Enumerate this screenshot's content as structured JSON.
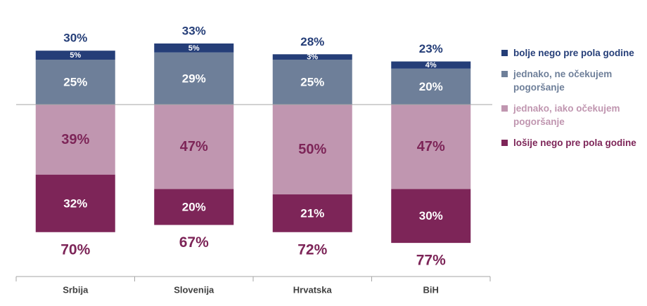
{
  "chart_data": {
    "type": "bar",
    "stacked": true,
    "categories": [
      "Srbija",
      "Slovenija",
      "Hrvatska",
      "BiH"
    ],
    "series": [
      {
        "name": "lošije nego pre pola godine",
        "values": [
          32,
          20,
          21,
          30
        ],
        "color": "#7d2558",
        "label_color": "#ffffff"
      },
      {
        "name": "jednako, iako očekujem pogoršanje",
        "values": [
          39,
          47,
          50,
          47
        ],
        "color": "#c096b0",
        "label_color": "#7d2558"
      },
      {
        "name": "jednako, ne očekujem pogoršanje",
        "values": [
          25,
          29,
          25,
          20
        ],
        "color": "#6e7f99",
        "label_color": "#ffffff"
      },
      {
        "name": "bolje nego pre pola godine",
        "values": [
          5,
          5,
          3,
          4
        ],
        "color": "#253e78",
        "label_color": "#ffffff"
      }
    ],
    "value_labels": [
      [
        "32%",
        "20%",
        "21%",
        "30%"
      ],
      [
        "39%",
        "47%",
        "50%",
        "47%"
      ],
      [
        "25%",
        "29%",
        "25%",
        "20%"
      ],
      [
        "5%",
        "5%",
        "3%",
        "4%"
      ]
    ],
    "totals_top": [
      "30%",
      "33%",
      "28%",
      "23%"
    ],
    "totals_bottom": [
      "70%",
      "67%",
      "72%",
      "77%"
    ],
    "baseline_between": "jednako, iako očekujem pogoršanje / jednako, ne očekujem pogoršanje",
    "legend_position": "right",
    "legend_order": [
      3,
      2,
      1,
      0
    ],
    "grid": false,
    "title": "",
    "xlabel": "",
    "ylabel": "",
    "colors": {
      "top_total": "#253e78",
      "bottom_total": "#7d2558",
      "axis": "#a6a6a6",
      "category_label": "#404040"
    }
  }
}
